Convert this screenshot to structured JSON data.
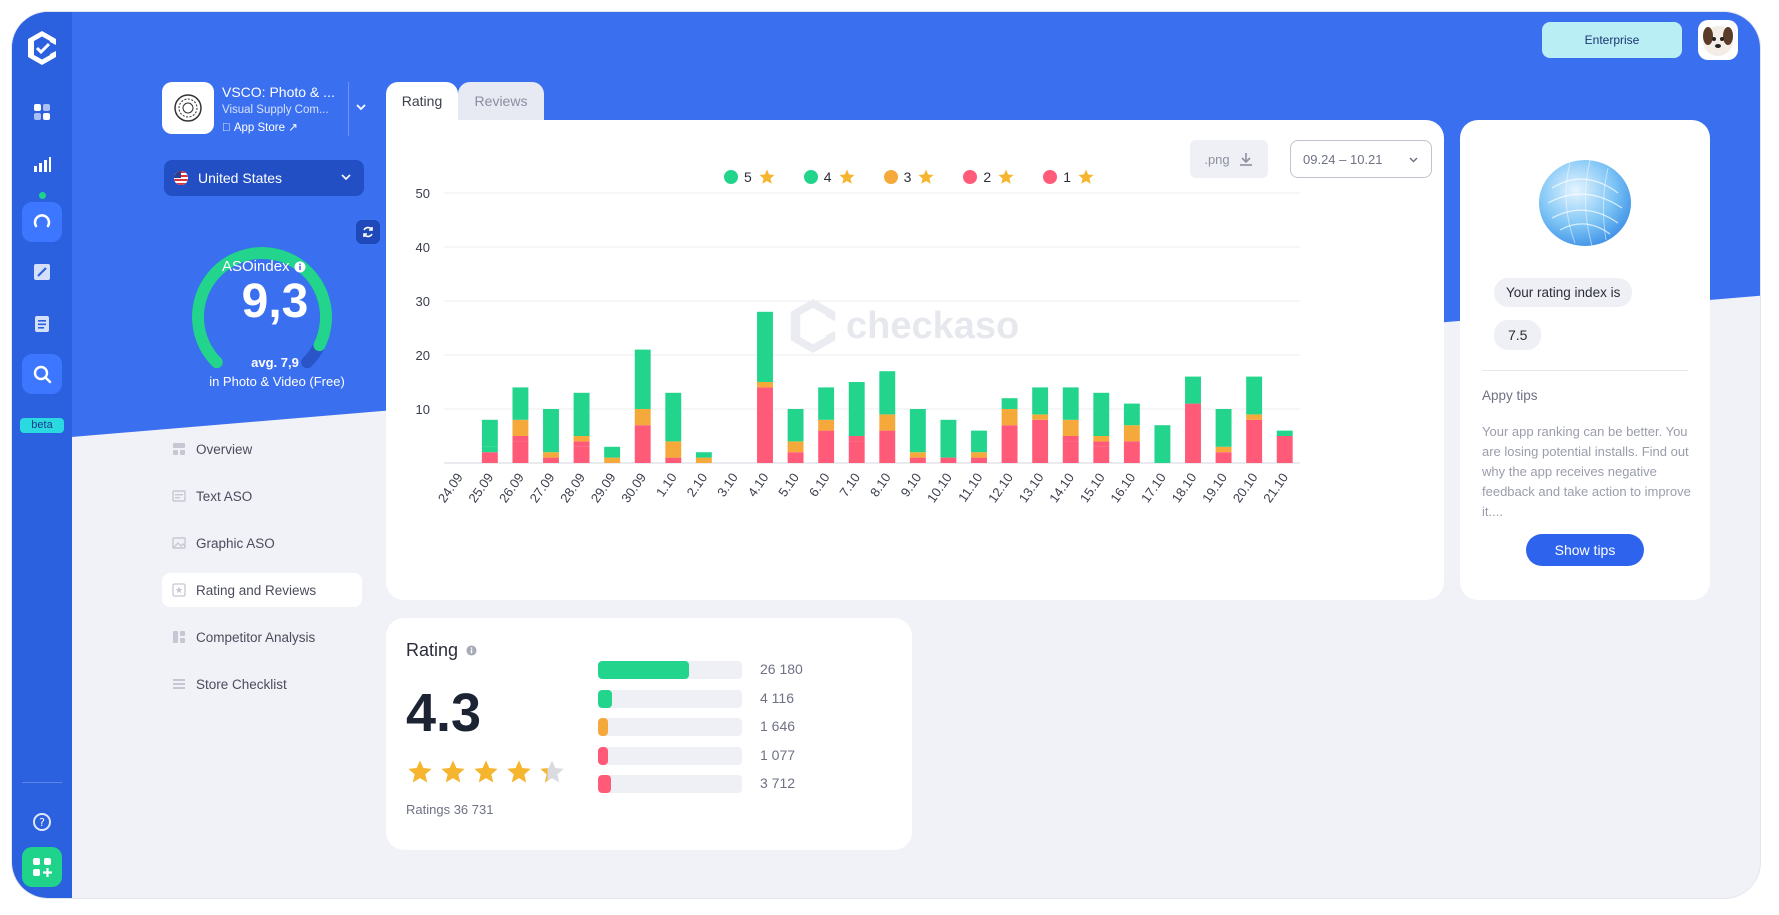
{
  "rail": {
    "items": [
      {
        "name": "dashboard-icon"
      },
      {
        "name": "analytics-icon"
      },
      {
        "name": "aso-icon"
      },
      {
        "name": "edit-icon"
      },
      {
        "name": "document-icon"
      },
      {
        "name": "search-icon"
      }
    ],
    "beta_label": "beta",
    "help_icon": "help-icon",
    "apps_icon": "apps-icon"
  },
  "header": {
    "plan_button": "Enterprise"
  },
  "app": {
    "name": "VSCO: Photo & ...",
    "developer": "Visual Supply Com...",
    "store": "App Store"
  },
  "country": {
    "label": "United States"
  },
  "aso": {
    "label": "ASOindex",
    "value": "9,3",
    "avg": "avg. 7,9",
    "category": "in Photo & Video (Free)",
    "gauge_fraction": 0.93
  },
  "nav": {
    "items": [
      {
        "label": "Overview",
        "active": false
      },
      {
        "label": "Text ASO",
        "active": false
      },
      {
        "label": "Graphic ASO",
        "active": false
      },
      {
        "label": "Rating and Reviews",
        "active": true
      },
      {
        "label": "Competitor Analysis",
        "active": false
      },
      {
        "label": "Store Checklist",
        "active": false
      }
    ]
  },
  "tabs": {
    "rating": "Rating",
    "reviews": "Reviews"
  },
  "toolbar": {
    "export_label": ".png",
    "date_range": "09.24 – 10.21"
  },
  "watermark": "checkaso",
  "chart_data": {
    "type": "bar",
    "stacked": true,
    "categories": [
      "24.09",
      "25.09",
      "26.09",
      "27.09",
      "28.09",
      "29.09",
      "30.09",
      "1.10",
      "2.10",
      "3.10",
      "4.10",
      "5.10",
      "6.10",
      "7.10",
      "8.10",
      "9.10",
      "10.10",
      "11.10",
      "12.10",
      "13.10",
      "14.10",
      "15.10",
      "16.10",
      "17.10",
      "18.10",
      "19.10",
      "20.10",
      "21.10"
    ],
    "series": [
      {
        "name": "1",
        "color": "#ff5a78",
        "values": [
          0,
          2,
          4,
          1,
          3,
          0,
          7,
          1,
          0,
          0,
          14,
          2,
          6,
          4,
          6,
          1,
          1,
          1,
          7,
          8,
          4,
          3,
          4,
          0,
          11,
          2,
          8,
          5
        ]
      },
      {
        "name": "2",
        "color": "#ff5a78",
        "values": [
          0,
          0,
          1,
          0,
          1,
          0,
          0,
          0,
          0,
          0,
          0,
          0,
          0,
          1,
          0,
          0,
          0,
          0,
          0,
          0,
          1,
          1,
          0,
          0,
          0,
          0,
          0,
          0
        ]
      },
      {
        "name": "3",
        "color": "#f5a93a",
        "values": [
          0,
          0,
          3,
          1,
          1,
          1,
          3,
          3,
          1,
          0,
          1,
          2,
          2,
          0,
          3,
          1,
          0,
          1,
          3,
          1,
          3,
          1,
          3,
          0,
          0,
          1,
          1,
          0
        ]
      },
      {
        "name": "4",
        "color": "#22d48c",
        "values": [
          0,
          1,
          0,
          0,
          0,
          0,
          0,
          0,
          0,
          0,
          0,
          0,
          0,
          0,
          0,
          0,
          0,
          0,
          0,
          0,
          0,
          0,
          0,
          0,
          0,
          0,
          0,
          0
        ]
      },
      {
        "name": "5",
        "color": "#22d48c",
        "values": [
          0,
          5,
          6,
          8,
          8,
          2,
          11,
          9,
          1,
          0,
          13,
          6,
          6,
          10,
          8,
          8,
          7,
          4,
          2,
          5,
          6,
          8,
          4,
          7,
          5,
          7,
          7,
          1
        ]
      }
    ],
    "ylim": [
      0,
      50
    ],
    "yticks": [
      10,
      20,
      30,
      40,
      50
    ],
    "grid": true,
    "legend": "top-center"
  },
  "legend": [
    {
      "label": "5",
      "color": "#22d48c"
    },
    {
      "label": "4",
      "color": "#22d48c"
    },
    {
      "label": "3",
      "color": "#f5a93a"
    },
    {
      "label": "2",
      "color": "#ff5a78"
    },
    {
      "label": "1",
      "color": "#ff5a78"
    }
  ],
  "rating": {
    "title": "Rating",
    "value": "4.3",
    "stars_fraction": 0.86,
    "count_label": "Ratings 36 731",
    "distribution": [
      {
        "count": "26 180",
        "fraction": 0.63,
        "color": "#22d48c"
      },
      {
        "count": "4 116",
        "fraction": 0.1,
        "color": "#22d48c"
      },
      {
        "count": "1 646",
        "fraction": 0.04,
        "color": "#f5a93a"
      },
      {
        "count": "1 077",
        "fraction": 0.03,
        "color": "#ff5a78"
      },
      {
        "count": "3 712",
        "fraction": 0.09,
        "color": "#ff5a78"
      }
    ]
  },
  "tips": {
    "bubble_text": "Your rating index is",
    "bubble_value": "7.5",
    "title": "Appy tips",
    "body": "Your app ranking can be better. You are losing potential installs. Find out why the app receives negative feedback and take action to improve it....",
    "button": "Show tips"
  }
}
